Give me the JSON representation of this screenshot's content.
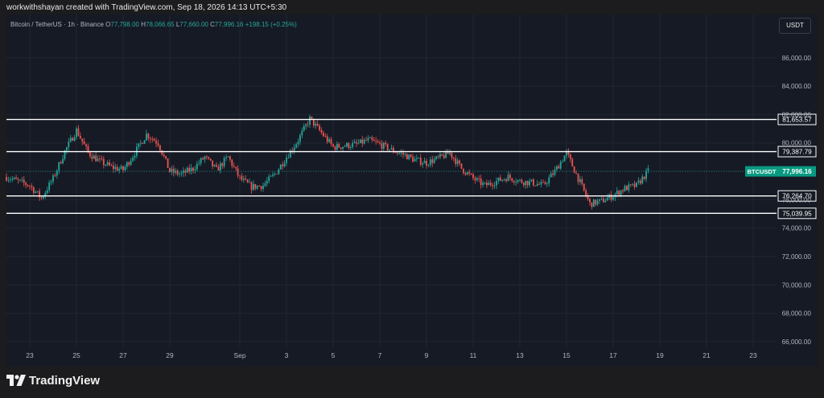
{
  "header": {
    "credit": "workwithshayan created with TradingView.com, Sep 18, 2026 14:13 UTC+5:30"
  },
  "legend": {
    "symbol": "Bitcoin / TetherUS · 1h · Binance",
    "o_label": "O",
    "o_value": "77,798.00",
    "h_label": "H",
    "h_value": "78,066.65",
    "l_label": "L",
    "l_value": "77,660.00",
    "c_label": "C",
    "c_value": "77,996.16",
    "change": "+198.15 (+0.25%)"
  },
  "currency_button": "USDT",
  "footer": {
    "brand": "TradingView"
  },
  "colors": {
    "up": "#26a69a",
    "down": "#ef5350",
    "level_line": "#ffffff",
    "badge": "#089981",
    "background": "#161a25"
  },
  "chart_data": {
    "type": "candlestick",
    "symbol_label": "BTCUSDT",
    "last_price": "77,996.16",
    "last_value": 77996.16,
    "y_axis": {
      "range": [
        65600,
        87800
      ],
      "ticks": [
        66000,
        68000,
        70000,
        72000,
        74000,
        76000,
        78000,
        80000,
        82000,
        84000,
        86000
      ],
      "tick_labels": [
        "66,000.00",
        "68,000.00",
        "70,000.00",
        "72,000.00",
        "74,000.00",
        "76,000.00",
        "78,000.00",
        "80,000.00",
        "82,000.00",
        "84,000.00",
        "86,000.00"
      ]
    },
    "x_axis": {
      "range": [
        "Aug 22",
        "Sep 24"
      ],
      "labels": [
        {
          "date": "Aug 23",
          "text": "23"
        },
        {
          "date": "Aug 25",
          "text": "25"
        },
        {
          "date": "Aug 27",
          "text": "27"
        },
        {
          "date": "Aug 29",
          "text": "29"
        },
        {
          "date": "Sep 1",
          "text": "Sep"
        },
        {
          "date": "Sep 3",
          "text": "3"
        },
        {
          "date": "Sep 5",
          "text": "5"
        },
        {
          "date": "Sep 7",
          "text": "7"
        },
        {
          "date": "Sep 9",
          "text": "9"
        },
        {
          "date": "Sep 11",
          "text": "11"
        },
        {
          "date": "Sep 13",
          "text": "13"
        },
        {
          "date": "Sep 15",
          "text": "15"
        },
        {
          "date": "Sep 17",
          "text": "17"
        },
        {
          "date": "Sep 19",
          "text": "19"
        },
        {
          "date": "Sep 21",
          "text": "21"
        },
        {
          "date": "Sep 23",
          "text": "23"
        }
      ]
    },
    "horizontal_levels": [
      {
        "value": 81653.57,
        "label": "81,653.57"
      },
      {
        "value": 79387.79,
        "label": "79,387.79"
      },
      {
        "value": 76264.7,
        "label": "76,264.70"
      },
      {
        "value": 75039.95,
        "label": "75,039.95"
      }
    ],
    "price_path": [
      {
        "date": "Aug 22",
        "price": 77600
      },
      {
        "date": "Aug 23",
        "price": 77000
      },
      {
        "date": "Aug 23 12:00",
        "price": 76100
      },
      {
        "date": "Aug 24",
        "price": 77500
      },
      {
        "date": "Aug 24 12:00",
        "price": 79400
      },
      {
        "date": "Aug 25",
        "price": 80900
      },
      {
        "date": "Aug 25 12:00",
        "price": 79300
      },
      {
        "date": "Aug 26",
        "price": 78700
      },
      {
        "date": "Aug 26 12:00",
        "price": 78300
      },
      {
        "date": "Aug 27",
        "price": 78100
      },
      {
        "date": "Aug 27 12:00",
        "price": 79300
      },
      {
        "date": "Aug 28",
        "price": 80600
      },
      {
        "date": "Aug 28 12:00",
        "price": 80000
      },
      {
        "date": "Aug 29",
        "price": 78000
      },
      {
        "date": "Aug 29 12:00",
        "price": 77800
      },
      {
        "date": "Aug 30",
        "price": 78200
      },
      {
        "date": "Aug 30 12:00",
        "price": 79000
      },
      {
        "date": "Aug 31",
        "price": 78100
      },
      {
        "date": "Aug 31 12:00",
        "price": 79000
      },
      {
        "date": "Sep 1",
        "price": 77500
      },
      {
        "date": "Sep 1 12:00",
        "price": 76900
      },
      {
        "date": "Sep 2",
        "price": 77000
      },
      {
        "date": "Sep 2 12:00",
        "price": 77800
      },
      {
        "date": "Sep 3",
        "price": 79000
      },
      {
        "date": "Sep 3 12:00",
        "price": 80200
      },
      {
        "date": "Sep 4",
        "price": 81700
      },
      {
        "date": "Sep 4 12:00",
        "price": 80700
      },
      {
        "date": "Sep 5",
        "price": 79700
      },
      {
        "date": "Sep 5 12:00",
        "price": 79800
      },
      {
        "date": "Sep 6",
        "price": 79900
      },
      {
        "date": "Sep 6 12:00",
        "price": 80200
      },
      {
        "date": "Sep 7",
        "price": 79900
      },
      {
        "date": "Sep 7 12:00",
        "price": 79500
      },
      {
        "date": "Sep 8",
        "price": 79200
      },
      {
        "date": "Sep 8 12:00",
        "price": 78800
      },
      {
        "date": "Sep 9",
        "price": 78600
      },
      {
        "date": "Sep 9 12:00",
        "price": 78900
      },
      {
        "date": "Sep 10",
        "price": 79300
      },
      {
        "date": "Sep 10 12:00",
        "price": 78200
      },
      {
        "date": "Sep 11",
        "price": 77500
      },
      {
        "date": "Sep 11 12:00",
        "price": 77000
      },
      {
        "date": "Sep 12",
        "price": 77300
      },
      {
        "date": "Sep 12 12:00",
        "price": 77600
      },
      {
        "date": "Sep 13",
        "price": 77300
      },
      {
        "date": "Sep 13 12:00",
        "price": 77200
      },
      {
        "date": "Sep 14",
        "price": 77000
      },
      {
        "date": "Sep 14 12:00",
        "price": 78000
      },
      {
        "date": "Sep 15",
        "price": 79300
      },
      {
        "date": "Sep 15 12:00",
        "price": 77500
      },
      {
        "date": "Sep 16",
        "price": 75700
      },
      {
        "date": "Sep 16 12:00",
        "price": 75900
      },
      {
        "date": "Sep 17",
        "price": 76300
      },
      {
        "date": "Sep 17 12:00",
        "price": 76800
      },
      {
        "date": "Sep 18",
        "price": 77000
      },
      {
        "date": "Sep 18 12:00",
        "price": 78000
      }
    ]
  }
}
